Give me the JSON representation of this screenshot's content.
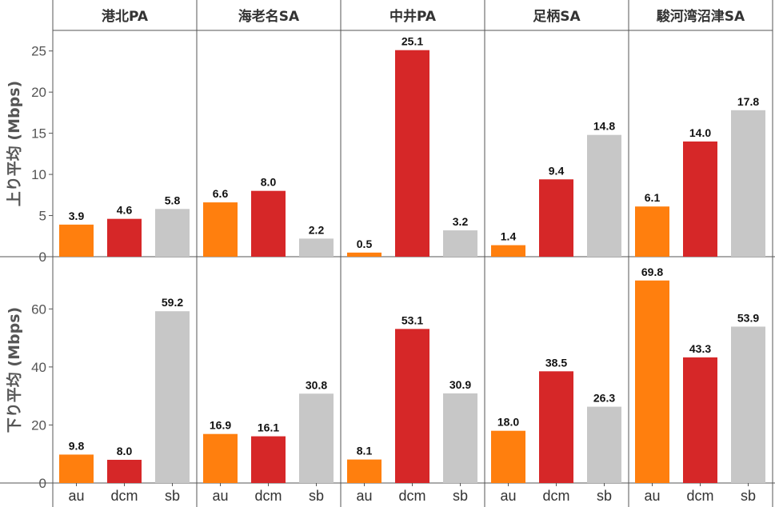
{
  "chart_data": {
    "type": "bar",
    "layout": "facet-grid",
    "facets": [
      "港北PA",
      "海老名SA",
      "中井PA",
      "足柄SA",
      "駿河湾沼津SA"
    ],
    "categories": [
      "au",
      "dcm",
      "sb"
    ],
    "colors": {
      "au": "#ff7f0e",
      "dcm": "#d62728",
      "sb": "#c7c7c7"
    },
    "grid": false,
    "rows": [
      {
        "ylabel": "上り平均 (Mbps)",
        "ylim": [
          0,
          27.5
        ],
        "yticks": [
          0,
          5,
          10,
          15,
          20,
          25
        ],
        "values": [
          [
            3.9,
            4.6,
            5.8
          ],
          [
            6.6,
            8.0,
            2.2
          ],
          [
            0.5,
            25.1,
            3.2
          ],
          [
            1.4,
            9.4,
            14.8
          ],
          [
            6.1,
            14.0,
            17.8
          ]
        ],
        "labels": [
          [
            "3.9",
            "4.6",
            "5.8"
          ],
          [
            "6.6",
            "8.0",
            "2.2"
          ],
          [
            "0.5",
            "25.1",
            "3.2"
          ],
          [
            "1.4",
            "9.4",
            "14.8"
          ],
          [
            "6.1",
            "14.0",
            "17.8"
          ]
        ]
      },
      {
        "ylabel": "下り平均 (Mbps)",
        "ylim": [
          0,
          78
        ],
        "yticks": [
          0,
          20,
          40,
          60
        ],
        "values": [
          [
            9.8,
            8.0,
            59.2
          ],
          [
            16.9,
            16.1,
            30.8
          ],
          [
            8.1,
            53.1,
            30.9
          ],
          [
            18.0,
            38.5,
            26.3
          ],
          [
            69.8,
            43.3,
            53.9
          ]
        ],
        "labels": [
          [
            "9.8",
            "8.0",
            "59.2"
          ],
          [
            "16.9",
            "16.1",
            "30.8"
          ],
          [
            "8.1",
            "53.1",
            "30.9"
          ],
          [
            "18.0",
            "38.5",
            "26.3"
          ],
          [
            "69.8",
            "43.3",
            "53.9"
          ]
        ]
      }
    ]
  }
}
